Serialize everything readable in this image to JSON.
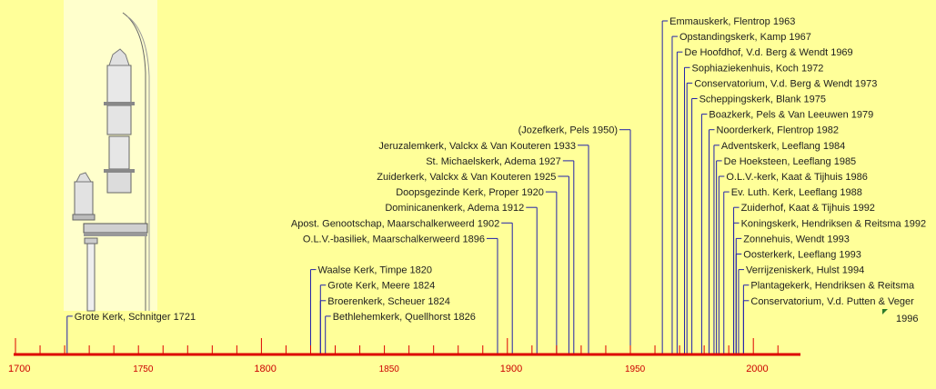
{
  "colors": {
    "background": "#ffff99",
    "axis": "#dd0000",
    "leader": "#2222aa",
    "illustration_panel": "#ffffcc",
    "label_text": "#1e1e1e"
  },
  "illustration": {
    "subject": "organ-case-drawing"
  },
  "chart_data": {
    "type": "timeline",
    "title": "",
    "xlabel": "",
    "ylabel": "",
    "xlim": [
      1700,
      2010
    ],
    "grid": false,
    "tick_labels": [
      "1700",
      "1750",
      "1800",
      "1850",
      "1900",
      "1950",
      "2000"
    ],
    "major_ticks": [
      1700,
      1800,
      1900,
      2000
    ],
    "minor_tick_step": 10,
    "events": [
      {
        "year": 1721,
        "label": "Grote Kerk, Schnitger 1721"
      },
      {
        "year": 1820,
        "label": "Waalse Kerk, Timpe 1820"
      },
      {
        "year": 1824,
        "label": "Grote Kerk, Meere 1824"
      },
      {
        "year": 1824,
        "label": "Broerenkerk, Scheuer 1824"
      },
      {
        "year": 1826,
        "label": "Bethlehemkerk, Quellhorst 1826"
      },
      {
        "year": 1896,
        "label": "O.L.V.-basiliek, Maarschalkerweerd 1896"
      },
      {
        "year": 1902,
        "label": "Apost. Genootschap, Maarschalkerweerd 1902"
      },
      {
        "year": 1912,
        "label": "Dominicanenkerk, Adema 1912"
      },
      {
        "year": 1920,
        "label": "Doopsgezinde Kerk, Proper 1920"
      },
      {
        "year": 1925,
        "label": "Zuiderkerk, Valckx & Van Kouteren 1925"
      },
      {
        "year": 1927,
        "label": "St. Michaelskerk, Adema 1927"
      },
      {
        "year": 1933,
        "label": "Jeruzalemkerk, Valckx & Van Kouteren 1933"
      },
      {
        "year": 1950,
        "label": "(Jozefkerk, Pels 1950)"
      },
      {
        "year": 1963,
        "label": "Emmauskerk, Flentrop 1963"
      },
      {
        "year": 1967,
        "label": "Opstandingskerk, Kamp 1967"
      },
      {
        "year": 1969,
        "label": "De Hoofdhof, V.d. Berg & Wendt 1969"
      },
      {
        "year": 1972,
        "label": "Sophiaziekenhuis, Koch 1972"
      },
      {
        "year": 1973,
        "label": "Conservatorium, V.d. Berg & Wendt 1973"
      },
      {
        "year": 1975,
        "label": "Scheppingskerk, Blank 1975"
      },
      {
        "year": 1979,
        "label": "Boazkerk, Pels & Van Leeuwen 1979"
      },
      {
        "year": 1982,
        "label": "Noorderkerk, Flentrop 1982"
      },
      {
        "year": 1984,
        "label": "Adventskerk, Leeflang 1984"
      },
      {
        "year": 1985,
        "label": "De Hoeksteen, Leeflang 1985"
      },
      {
        "year": 1986,
        "label": "O.L.V.-kerk, Kaat & Tijhuis 1986"
      },
      {
        "year": 1988,
        "label": "Ev. Luth. Kerk, Leeflang 1988"
      },
      {
        "year": 1992,
        "label": "Zuiderhof, Kaat & Tijhuis 1992"
      },
      {
        "year": 1992,
        "label": "Koningskerk, Hendriksen & Reitsma 1992"
      },
      {
        "year": 1993,
        "label": "Zonnehuis, Wendt 1993"
      },
      {
        "year": 1993,
        "label": "Oosterkerk, Leeflang 1993"
      },
      {
        "year": 1994,
        "label": "Verrijzeniskerk, Hulst 1994"
      },
      {
        "year": 1996,
        "label": "Plantagekerk, Hendriksen & Reitsma"
      },
      {
        "year": 1996,
        "label": "Conservatorium, V.d. Putten & Veger"
      }
    ],
    "annotations": [
      {
        "year": 1996,
        "label": "1996",
        "note": "continuation of the last label"
      }
    ]
  }
}
